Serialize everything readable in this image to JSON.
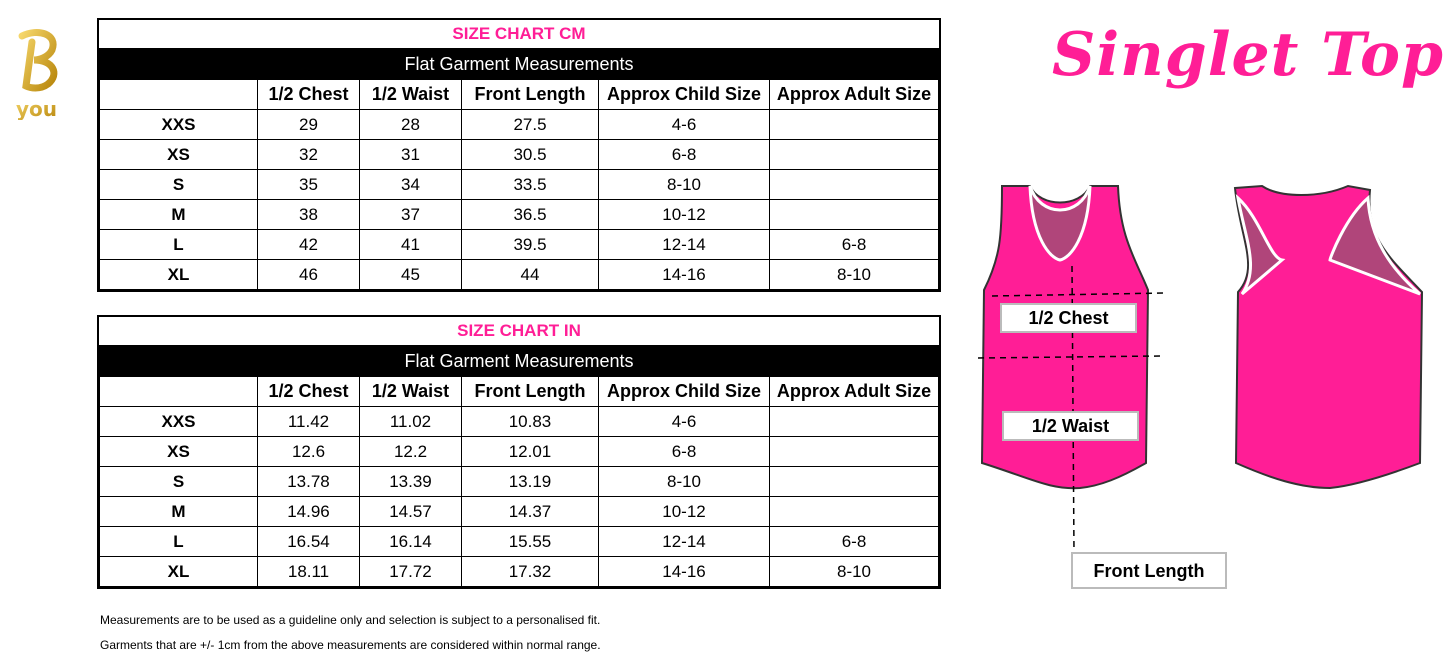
{
  "brand": {
    "logo_text": "B you"
  },
  "title": "Singlet Top",
  "columns": [
    "",
    "1/2 Chest",
    "1/2 Waist",
    "Front Length",
    "Approx Child Size",
    "Approx Adult Size"
  ],
  "cm": {
    "title": "SIZE CHART CM",
    "subtitle": "Flat Garment Measurements",
    "rows": [
      [
        "XXS",
        "29",
        "28",
        "27.5",
        "4-6",
        ""
      ],
      [
        "XS",
        "32",
        "31",
        "30.5",
        "6-8",
        ""
      ],
      [
        "S",
        "35",
        "34",
        "33.5",
        "8-10",
        ""
      ],
      [
        "M",
        "38",
        "37",
        "36.5",
        "10-12",
        ""
      ],
      [
        "L",
        "42",
        "41",
        "39.5",
        "12-14",
        "6-8"
      ],
      [
        "XL",
        "46",
        "45",
        "44",
        "14-16",
        "8-10"
      ]
    ]
  },
  "in": {
    "title": "SIZE CHART IN",
    "subtitle": "Flat Garment Measurements",
    "rows": [
      [
        "XXS",
        "11.42",
        "11.02",
        "10.83",
        "4-6",
        ""
      ],
      [
        "XS",
        "12.6",
        "12.2",
        "12.01",
        "6-8",
        ""
      ],
      [
        "S",
        "13.78",
        "13.39",
        "13.19",
        "8-10",
        ""
      ],
      [
        "M",
        "14.96",
        "14.57",
        "14.37",
        "10-12",
        ""
      ],
      [
        "L",
        "16.54",
        "16.14",
        "15.55",
        "12-14",
        "6-8"
      ],
      [
        "XL",
        "18.11",
        "17.72",
        "17.32",
        "14-16",
        "8-10"
      ]
    ]
  },
  "diagram": {
    "chest_label": "1/2 Chest",
    "waist_label": "1/2 Waist",
    "length_label": "Front Length",
    "garment_color": "#ff1e96"
  },
  "notes": [
    "Measurements are to be used as a guideline only and selection is subject to a personalised fit.",
    "Garments that are +/- 1cm from the above measurements are considered within normal range."
  ]
}
